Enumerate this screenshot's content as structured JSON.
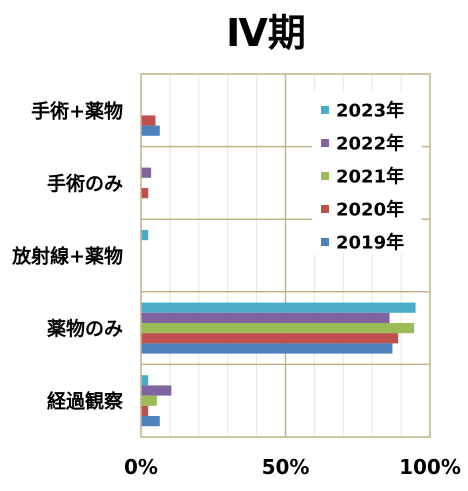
{
  "chart_data": {
    "type": "bar",
    "orientation": "horizontal",
    "title": "Ⅳ期",
    "categories": [
      "手術+薬物",
      "手術のみ",
      "放射線+薬物",
      "薬物のみ",
      "経過観察"
    ],
    "x_ticks": [
      "0%",
      "50%",
      "100%"
    ],
    "xlim": [
      0,
      100
    ],
    "grid": true,
    "legend_position": "right",
    "series": [
      {
        "name": "2023年",
        "color": "#4bacc6",
        "values": [
          0,
          0,
          2.5,
          95,
          2.5
        ]
      },
      {
        "name": "2022年",
        "color": "#8064a2",
        "values": [
          0,
          3.5,
          0,
          86,
          10.5
        ]
      },
      {
        "name": "2021年",
        "color": "#9bbb59",
        "values": [
          0,
          0,
          0,
          94.5,
          5.5
        ]
      },
      {
        "name": "2020年",
        "color": "#c0504d",
        "values": [
          5,
          2.5,
          0,
          89,
          2.5
        ]
      },
      {
        "name": "2019年",
        "color": "#4f81bd",
        "values": [
          6.5,
          0,
          0,
          87,
          6.5
        ]
      }
    ]
  }
}
